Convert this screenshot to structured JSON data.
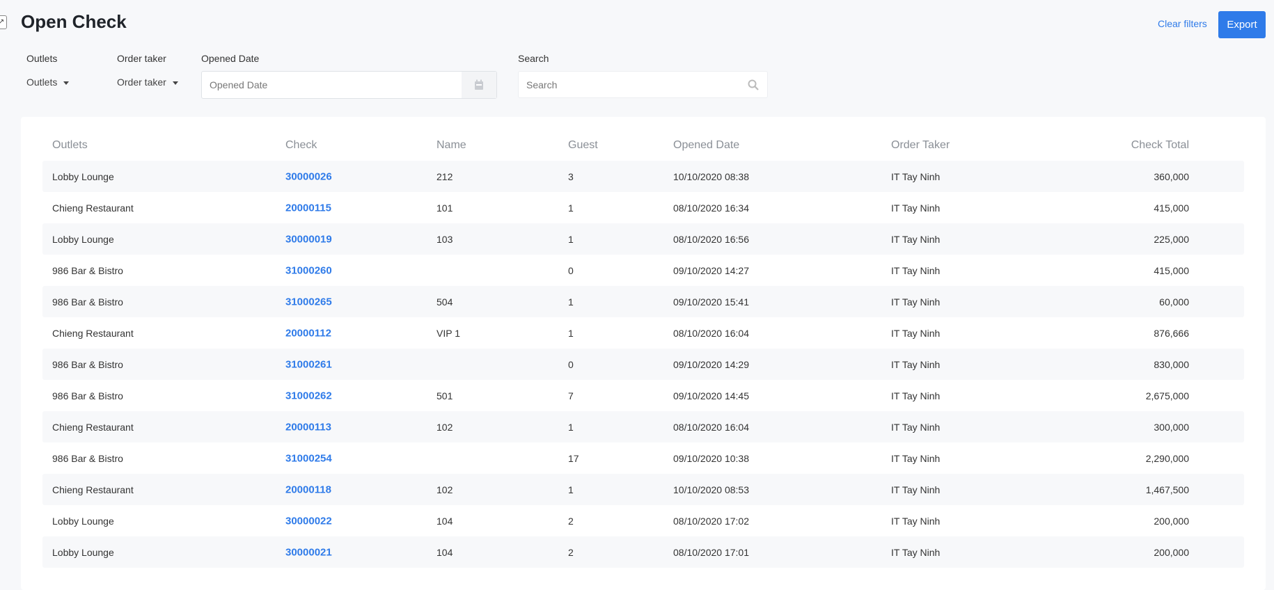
{
  "header": {
    "title": "Open Check",
    "clear_filters": "Clear filters",
    "export": "Export"
  },
  "filters": {
    "outlets_label": "Outlets",
    "outlets_value": "Outlets",
    "order_taker_label": "Order taker",
    "order_taker_value": "Order taker",
    "opened_date_label": "Opened Date",
    "opened_date_placeholder": "Opened Date",
    "search_label": "Search",
    "search_placeholder": "Search"
  },
  "table": {
    "columns": [
      "Outlets",
      "Check",
      "Name",
      "Guest",
      "Opened Date",
      "Order Taker",
      "Check Total"
    ],
    "rows": [
      [
        "Lobby Lounge",
        "30000026",
        "212",
        "3",
        "10/10/2020 08:38",
        "IT Tay Ninh",
        "360,000"
      ],
      [
        "Chieng Restaurant",
        "20000115",
        "101",
        "1",
        "08/10/2020 16:34",
        "IT Tay Ninh",
        "415,000"
      ],
      [
        "Lobby Lounge",
        "30000019",
        "103",
        "1",
        "08/10/2020 16:56",
        "IT Tay Ninh",
        "225,000"
      ],
      [
        "986 Bar & Bistro",
        "31000260",
        "",
        "0",
        "09/10/2020 14:27",
        "IT Tay Ninh",
        "415,000"
      ],
      [
        "986 Bar & Bistro",
        "31000265",
        "504",
        "1",
        "09/10/2020 15:41",
        "IT Tay Ninh",
        "60,000"
      ],
      [
        "Chieng Restaurant",
        "20000112",
        "VIP 1",
        "1",
        "08/10/2020 16:04",
        "IT Tay Ninh",
        "876,666"
      ],
      [
        "986 Bar & Bistro",
        "31000261",
        "",
        "0",
        "09/10/2020 14:29",
        "IT Tay Ninh",
        "830,000"
      ],
      [
        "986 Bar & Bistro",
        "31000262",
        "501",
        "7",
        "09/10/2020 14:45",
        "IT Tay Ninh",
        "2,675,000"
      ],
      [
        "Chieng Restaurant",
        "20000113",
        "102",
        "1",
        "08/10/2020 16:04",
        "IT Tay Ninh",
        "300,000"
      ],
      [
        "986 Bar & Bistro",
        "31000254",
        "",
        "17",
        "09/10/2020 10:38",
        "IT Tay Ninh",
        "2,290,000"
      ],
      [
        "Chieng Restaurant",
        "20000118",
        "102",
        "1",
        "10/10/2020 08:53",
        "IT Tay Ninh",
        "1,467,500"
      ],
      [
        "Lobby Lounge",
        "30000022",
        "104",
        "2",
        "08/10/2020 17:02",
        "IT Tay Ninh",
        "200,000"
      ],
      [
        "Lobby Lounge",
        "30000021",
        "104",
        "2",
        "08/10/2020 17:01",
        "IT Tay Ninh",
        "200,000"
      ]
    ]
  },
  "colors": {
    "accent": "#2f7be9",
    "row_alt": "#f7f8fa",
    "background": "#f7f8fa"
  }
}
